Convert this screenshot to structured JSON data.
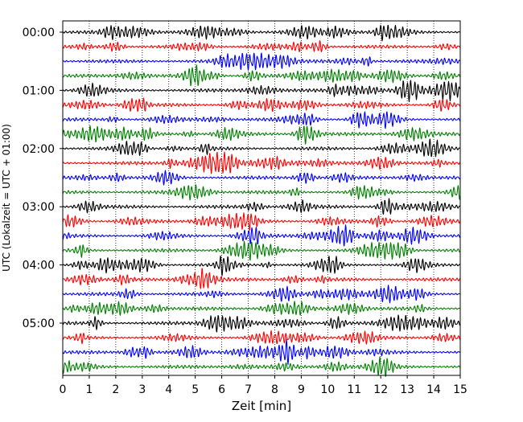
{
  "chart_data": {
    "type": "line",
    "title": "",
    "xlabel": "Zeit  [min]",
    "ylabel": "UTC (Lokalzeit = UTC + 01:00)",
    "xlim": [
      0,
      15
    ],
    "x_ticks": [
      "0",
      "1",
      "2",
      "3",
      "4",
      "5",
      "6",
      "7",
      "8",
      "9",
      "10",
      "11",
      "12",
      "13",
      "14",
      "15"
    ],
    "y_tick_labels": [
      "00:00",
      "01:00",
      "02:00",
      "03:00",
      "04:00",
      "05:00"
    ],
    "grid": "vertical dotted",
    "trace_interval_minutes": 15,
    "trace_count": 24,
    "trace_colors": [
      "#000000",
      "#ff0000",
      "#0000ff",
      "#008000"
    ]
  }
}
